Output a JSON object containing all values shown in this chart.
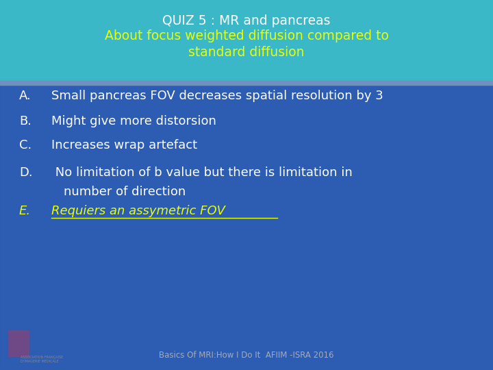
{
  "title_line1": "QUIZ 5 : MR and pancreas",
  "title_line2": "About focus weighted diffusion compared to",
  "title_line3": "standard diffusion",
  "title_color": "#ffffff",
  "subtitle_color": "#e8ff00",
  "header_bg": "#3ab8c8",
  "main_bg": "#3060b8",
  "items": [
    {
      "label": "A.",
      "text": "Small pancreas FOV decreases spatial resolution by 3",
      "italic": false,
      "underline": false,
      "color": "#ffffff",
      "label_color": "#ffffff"
    },
    {
      "label": "B.",
      "text": "Might give more distorsion",
      "italic": false,
      "underline": false,
      "color": "#ffffff",
      "label_color": "#ffffff"
    },
    {
      "label": "C.",
      "text": "Increases wrap artefact",
      "italic": false,
      "underline": false,
      "color": "#ffffff",
      "label_color": "#ffffff"
    },
    {
      "label": "D.",
      "text": " No limitation of b value but there is limitation in",
      "text2": "number of direction",
      "italic": false,
      "underline": false,
      "color": "#ffffff",
      "label_color": "#ffffff"
    },
    {
      "label": "E.",
      "text": "Requiers an assymetric FOV",
      "italic": true,
      "underline": true,
      "color": "#e8ff00",
      "label_color": "#e8ff00"
    }
  ],
  "footer_text": "Basics Of MRI:How I Do It  AFIIM -ISRA 2016",
  "footer_color": "#aaaaaa",
  "figsize": [
    7.2,
    5.4
  ],
  "dpi": 100
}
